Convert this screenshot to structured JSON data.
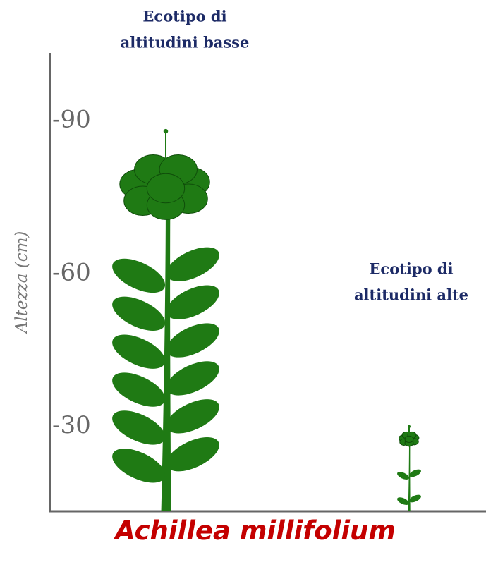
{
  "axis": {
    "label": "Altezza (cm)",
    "ticks": [
      {
        "value": 90,
        "label": "-90"
      },
      {
        "value": 60,
        "label": "-60"
      },
      {
        "value": 30,
        "label": "-30"
      }
    ]
  },
  "plants": [
    {
      "label_lines": [
        "Ecotipo di",
        "altitudini basse"
      ],
      "height": 88
    },
    {
      "label_lines": [
        "Ecotipo di",
        "altitudini alte"
      ],
      "height": 30
    }
  ],
  "species": "Achillea millifolium"
}
